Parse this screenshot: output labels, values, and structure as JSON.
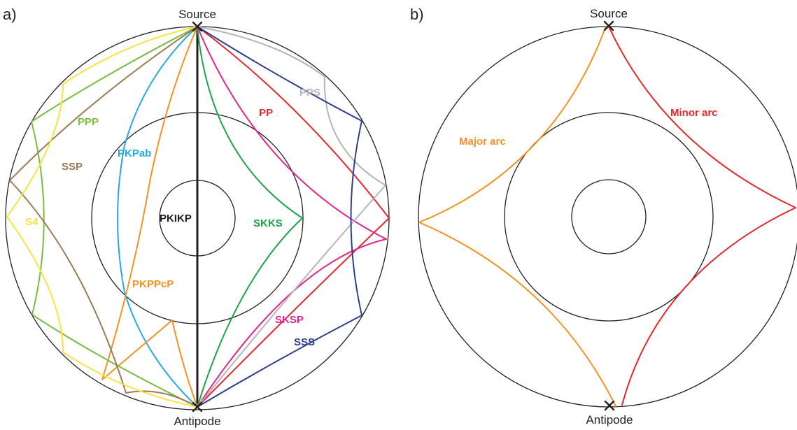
{
  "colors": {
    "PKIKP": "#231f20",
    "SKKS": "#1fa34a",
    "PP": "#e2292d",
    "PPS": "#b5b5b7",
    "SSS": "#2f3f8f",
    "SKSP": "#e2268f",
    "PKPab": "#27a9e1",
    "PKPPcP": "#f39225",
    "PPP": "#79bd43",
    "SSP": "#9c7b54",
    "S4": "#f8e244",
    "major": "#f39225",
    "minor": "#e2292d"
  },
  "panel_a": {
    "letter": "a)",
    "source": "Source",
    "antipode": "Antipode",
    "phases": {
      "PPS": "PPS",
      "PP": "PP",
      "PPP": "PPP",
      "PKPab": "PKPab",
      "SSP": "SSP",
      "PKIKP": "PKIKP",
      "SKKS": "SKKS",
      "S4": "S4",
      "PKPPcP": "PKPPcP",
      "SKSP": "SKSP",
      "SSS": "SSS"
    }
  },
  "panel_b": {
    "letter": "b)",
    "source": "Source",
    "antipode": "Antipode",
    "minor": "Minor arc",
    "major": "Major arc"
  }
}
